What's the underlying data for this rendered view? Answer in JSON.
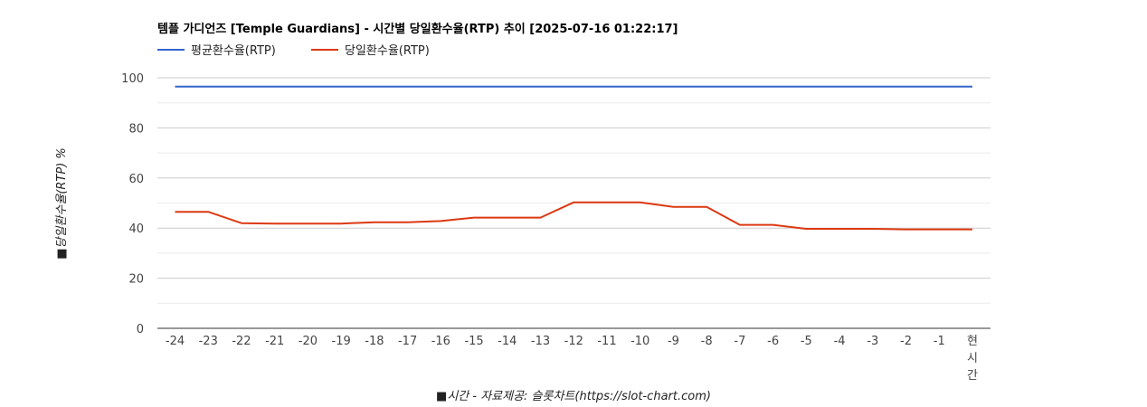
{
  "chart_data": {
    "type": "line",
    "title": "템플 가디언즈 [Temple Guardians] - 시간별 당일환수율(RTP) 추이 [2025-07-16 01:22:17]",
    "xlabel": "■시간 - 자료제공: 슬롯차트(https://slot-chart.com)",
    "ylabel": "■당일환수율(RTP) %",
    "categories": [
      "-24",
      "-23",
      "-22",
      "-21",
      "-20",
      "-19",
      "-18",
      "-17",
      "-16",
      "-15",
      "-14",
      "-13",
      "-12",
      "-11",
      "-10",
      "-9",
      "-8",
      "-7",
      "-6",
      "-5",
      "-4",
      "-3",
      "-2",
      "-1",
      "현시간"
    ],
    "series": [
      {
        "name": "평균환수율(RTP)",
        "color": "#3366cc",
        "values": [
          96.5,
          96.5,
          96.5,
          96.5,
          96.5,
          96.5,
          96.5,
          96.5,
          96.5,
          96.5,
          96.5,
          96.5,
          96.5,
          96.5,
          96.5,
          96.5,
          96.5,
          96.5,
          96.5,
          96.5,
          96.5,
          96.5,
          96.5,
          96.5,
          96.5
        ]
      },
      {
        "name": "당일환수율(RTP)",
        "color": "#dc3912",
        "values": [
          46.5,
          46.5,
          42.0,
          41.8,
          41.8,
          41.8,
          42.3,
          42.3,
          42.8,
          44.2,
          44.2,
          44.2,
          50.3,
          50.3,
          50.3,
          48.5,
          48.5,
          41.3,
          41.3,
          39.7,
          39.7,
          39.7,
          39.5,
          39.5,
          39.5
        ]
      }
    ],
    "ylim": [
      0,
      100
    ],
    "yticks": [
      0,
      20,
      40,
      60,
      80,
      100
    ],
    "grid": true,
    "legend_position": "top-left"
  }
}
